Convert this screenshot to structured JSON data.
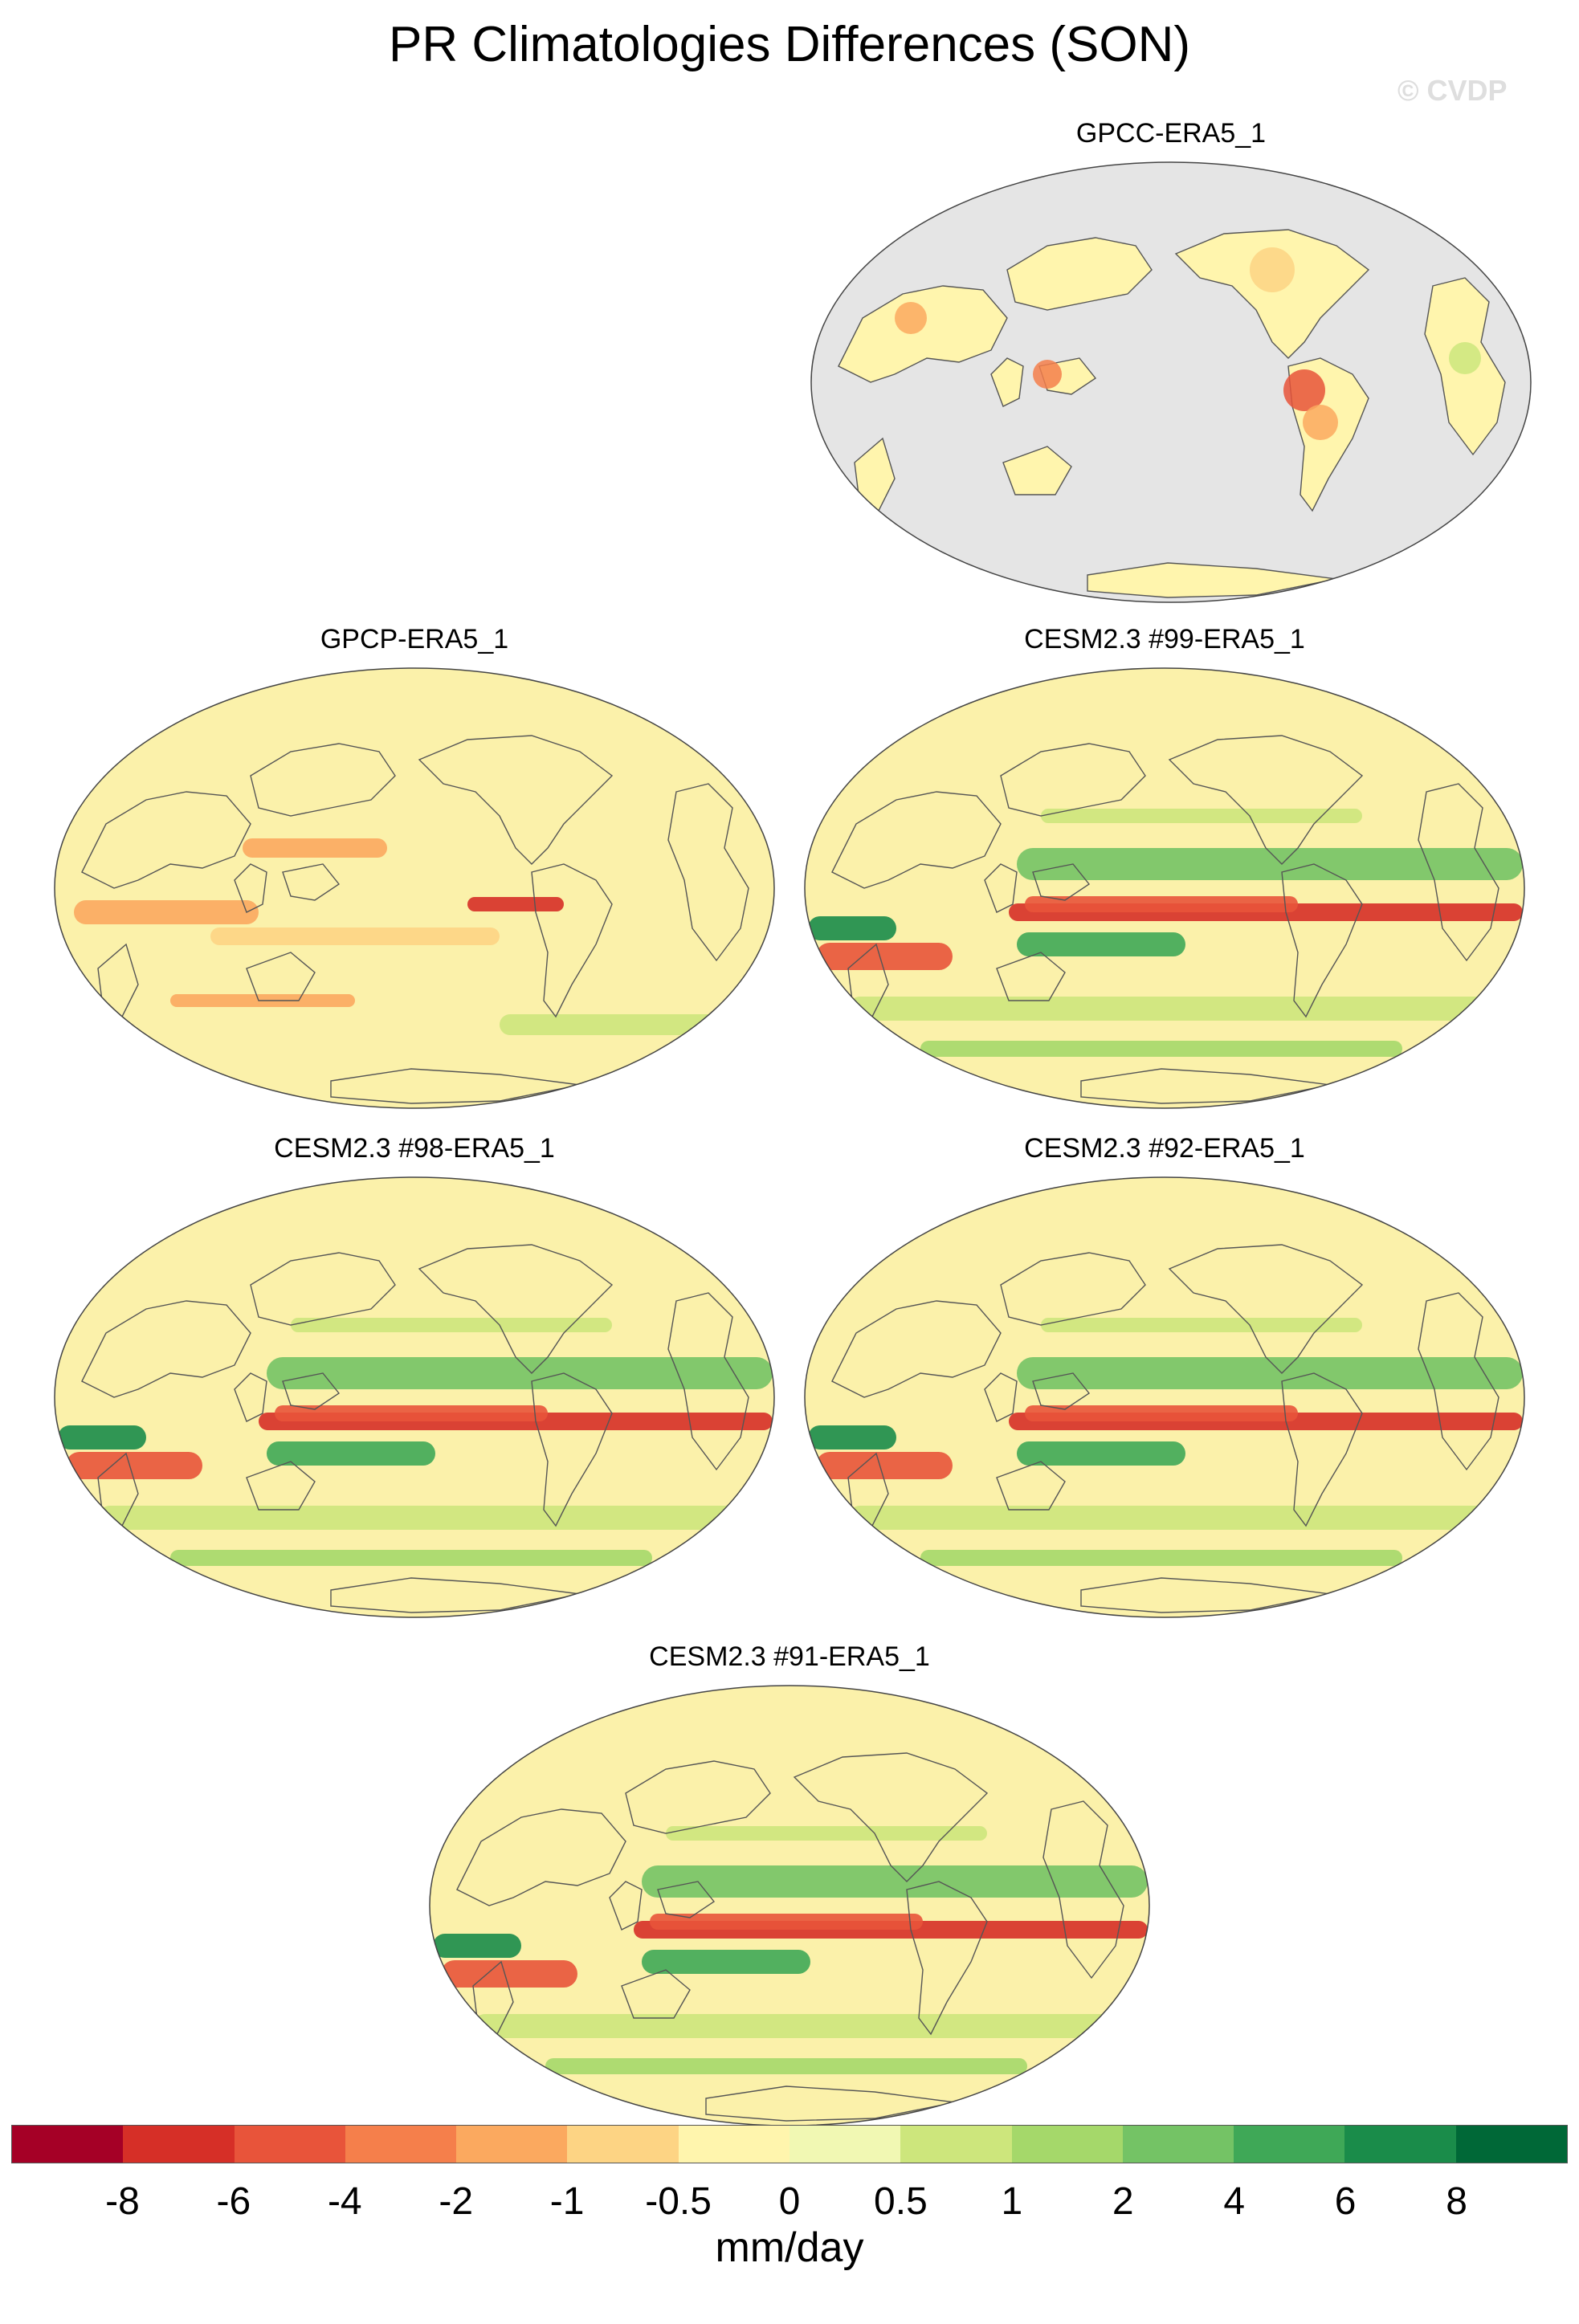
{
  "title": "PR Climatologies Differences (SON)",
  "watermark": "© CVDP",
  "panels": [
    {
      "label": "GPCC-ERA5_1",
      "land_only": true
    },
    {
      "label": "GPCP-ERA5_1",
      "land_only": false
    },
    {
      "label": "CESM2.3 #99-ERA5_1",
      "land_only": false
    },
    {
      "label": "CESM2.3 #98-ERA5_1",
      "land_only": false
    },
    {
      "label": "CESM2.3 #92-ERA5_1",
      "land_only": false
    },
    {
      "label": "CESM2.3 #91-ERA5_1",
      "land_only": false
    }
  ],
  "colorbar": {
    "units": "mm/day",
    "labels": [
      "-8",
      "-6",
      "-4",
      "-2",
      "-1",
      "-0.5",
      "0",
      "0.5",
      "1",
      "2",
      "4",
      "6",
      "8"
    ],
    "colors": [
      "#a50026",
      "#d62f27",
      "#e8543a",
      "#f57f4b",
      "#fba95f",
      "#fdd484",
      "#fff5ad",
      "#f1f8b3",
      "#cde67c",
      "#a5d86a",
      "#74c365",
      "#3fa857",
      "#1a8c4a",
      "#006837"
    ]
  },
  "colors": {
    "ocean_missing": "#e5e5e5",
    "coastline": "#555555",
    "near_zero": "#fbf1aa"
  }
}
